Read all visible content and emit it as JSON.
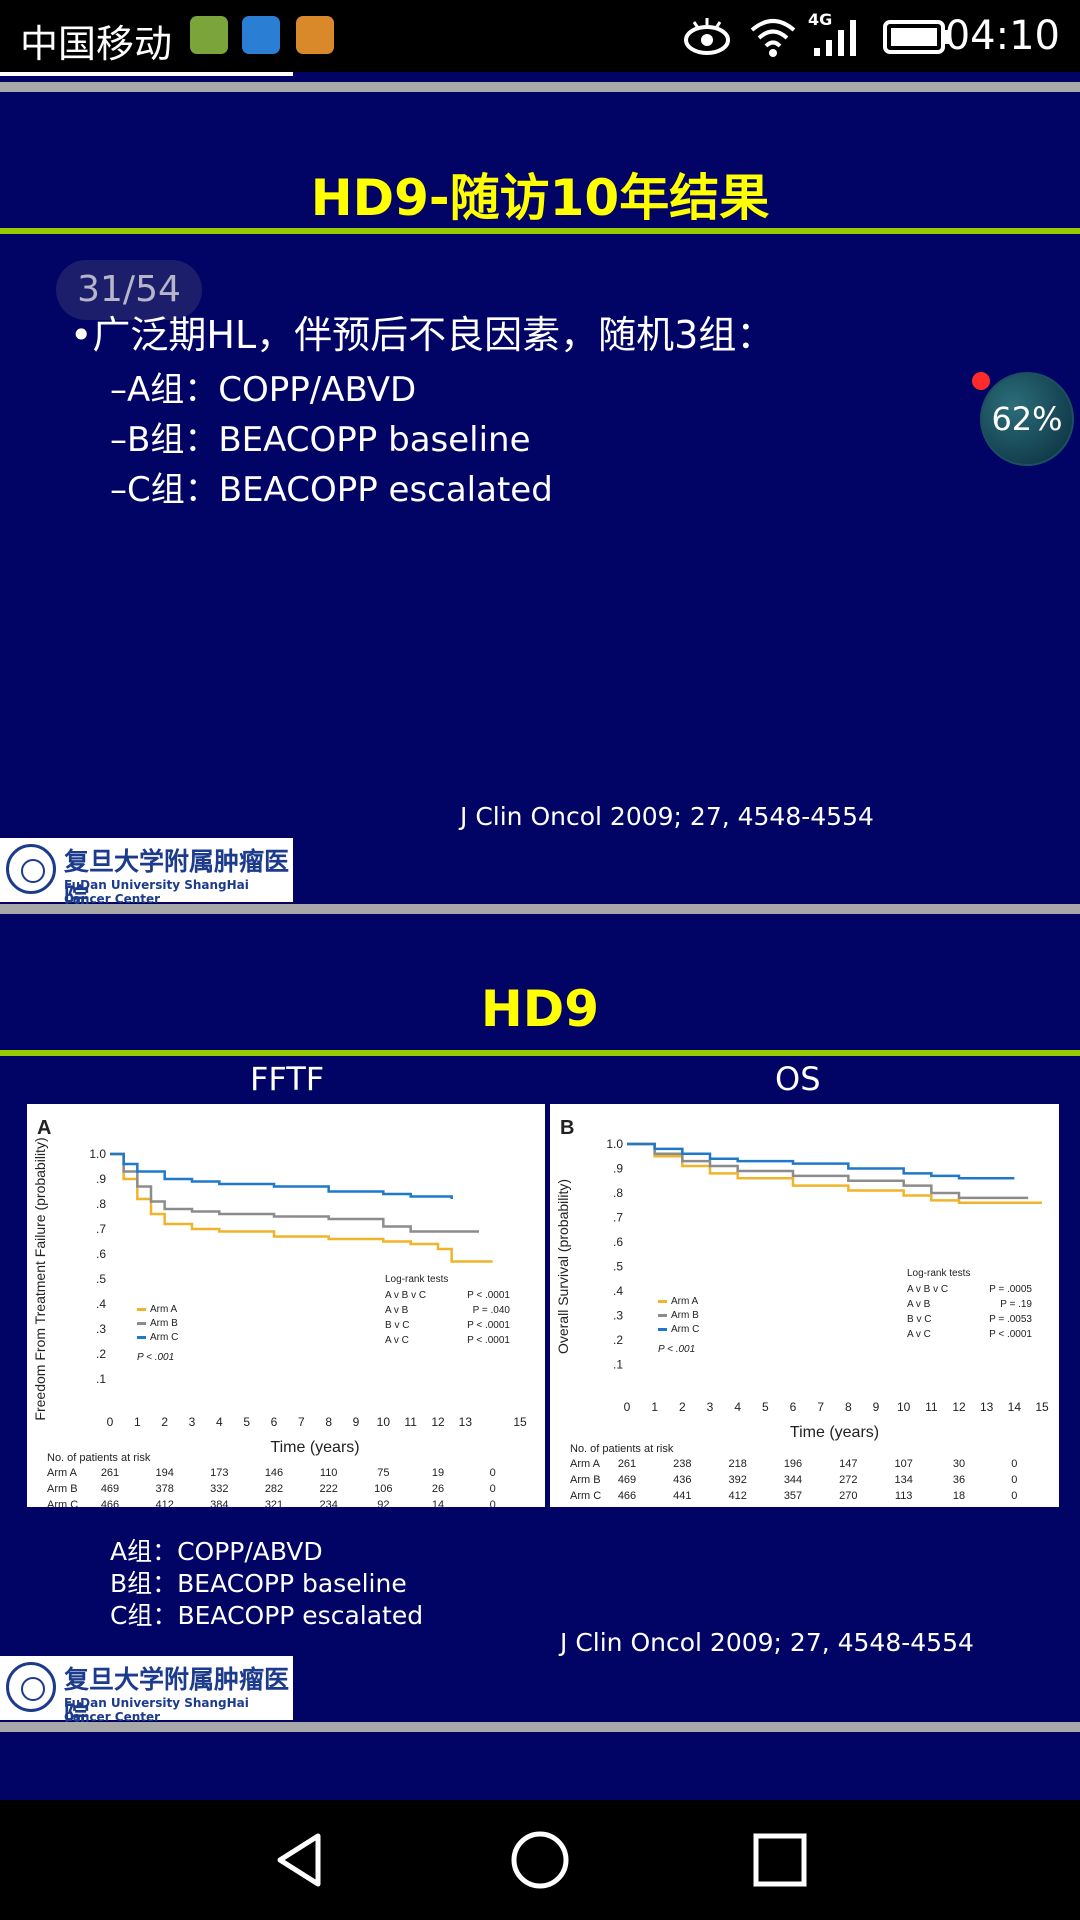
{
  "status": {
    "carrier": "中国移动",
    "network": "4G",
    "time": "04:10",
    "icons": [
      "app-icon-1",
      "app-icon-2",
      "app-icon-3",
      "eye-icon",
      "wifi-icon",
      "signal-icon",
      "battery-icon"
    ]
  },
  "slide1": {
    "title": "HD9-随访10年结果",
    "page_indicator": "31/54",
    "bullet": "•广泛期HL，伴预后不良因素，随机3组：",
    "sub_items": [
      "–A组：COPP/ABVD",
      "–B组：BEACOPP baseline",
      "–C组：BEACOPP escalated"
    ],
    "citation": "J Clin Oncol 2009; 27, 4548-4554",
    "logo_cn": "复旦大学附属肿瘤医院",
    "logo_en": "FuDan University ShangHai Cancer Center"
  },
  "float_ball": {
    "percent": "62%"
  },
  "slide2": {
    "title": "HD9",
    "col_left": "FFTF",
    "col_right": "OS",
    "legend_list": [
      "A组：COPP/ABVD",
      "B组：BEACOPP baseline",
      "C组：BEACOPP escalated"
    ],
    "citation": "J Clin Oncol 2009; 27, 4548-4554",
    "logo_cn": "复旦大学附属肿瘤医院",
    "logo_en": "FuDan University ShangHai Cancer Center"
  },
  "colors": {
    "slide_bg": "#010464",
    "title": "#ffff00",
    "rule": "#99cc00",
    "arm_a": "#f0b428",
    "arm_b": "#8c8c8c",
    "arm_c": "#1f78c8"
  },
  "chart_data": [
    {
      "type": "line",
      "panel": "A",
      "ylabel": "Freedom From Treatment Failure (probability)",
      "xlabel": "Time (years)",
      "xlim": [
        0,
        15
      ],
      "ylim": [
        0,
        1
      ],
      "xticks": [
        "0",
        "1",
        "2",
        "3",
        "4",
        "5",
        "6",
        "7",
        "8",
        "9",
        "10",
        "11",
        "12",
        "13",
        "15"
      ],
      "yticks": [
        ".1",
        ".2",
        ".3",
        ".4",
        ".5",
        ".6",
        ".7",
        ".8",
        ".9",
        "1.0"
      ],
      "series": [
        {
          "name": "Arm A",
          "x": [
            0,
            0.5,
            1,
            1.5,
            2,
            3,
            4,
            6,
            8,
            10,
            11,
            12,
            12.5,
            14
          ],
          "y": [
            1.0,
            0.9,
            0.82,
            0.76,
            0.72,
            0.7,
            0.69,
            0.67,
            0.66,
            0.65,
            0.64,
            0.62,
            0.57,
            0.57
          ]
        },
        {
          "name": "Arm B",
          "x": [
            0,
            0.5,
            1,
            1.5,
            2,
            3,
            4,
            6,
            8,
            10,
            11,
            12,
            13.5
          ],
          "y": [
            1.0,
            0.93,
            0.87,
            0.81,
            0.78,
            0.77,
            0.76,
            0.75,
            0.74,
            0.71,
            0.69,
            0.69,
            0.69
          ]
        },
        {
          "name": "Arm C",
          "x": [
            0,
            0.5,
            1,
            2,
            3,
            4,
            6,
            8,
            10,
            11,
            12.5
          ],
          "y": [
            1.0,
            0.96,
            0.93,
            0.9,
            0.89,
            0.88,
            0.87,
            0.85,
            0.84,
            0.83,
            0.82
          ]
        }
      ],
      "legend_text": [
        "Arm A",
        "Arm B",
        "Arm C"
      ],
      "p_overall": "P < .001",
      "log_rank": {
        "title": "Log-rank tests",
        "rows": [
          [
            "A v B v C",
            "P < .0001"
          ],
          [
            "A v B",
            "P = .040"
          ],
          [
            "B v C",
            "P < .0001"
          ],
          [
            "A v C",
            "P < .0001"
          ]
        ]
      },
      "risk_table": {
        "title": "No. of patients at risk",
        "rows": [
          {
            "label": "Arm A",
            "values": [
              "261",
              "194",
              "173",
              "146",
              "110",
              "75",
              "19",
              "0"
            ]
          },
          {
            "label": "Arm B",
            "values": [
              "469",
              "378",
              "332",
              "282",
              "222",
              "106",
              "26",
              "0"
            ]
          },
          {
            "label": "Arm C",
            "values": [
              "466",
              "412",
              "384",
              "321",
              "234",
              "92",
              "14",
              "0"
            ]
          }
        ]
      }
    },
    {
      "type": "line",
      "panel": "B",
      "ylabel": "Overall Survival (probability)",
      "xlabel": "Time (years)",
      "xlim": [
        0,
        15
      ],
      "ylim": [
        0,
        1
      ],
      "xticks": [
        "0",
        "1",
        "2",
        "3",
        "4",
        "5",
        "6",
        "7",
        "8",
        "9",
        "10",
        "11",
        "12",
        "13",
        "14",
        "15"
      ],
      "yticks": [
        ".1",
        ".2",
        ".3",
        ".4",
        ".5",
        ".6",
        ".7",
        ".8",
        ".9",
        "1.0"
      ],
      "series": [
        {
          "name": "Arm A",
          "x": [
            0,
            1,
            2,
            3,
            4,
            6,
            8,
            10,
            11,
            12,
            15
          ],
          "y": [
            1.0,
            0.95,
            0.91,
            0.88,
            0.86,
            0.83,
            0.81,
            0.79,
            0.77,
            0.76,
            0.76
          ]
        },
        {
          "name": "Arm B",
          "x": [
            0,
            1,
            2,
            3,
            4,
            6,
            8,
            10,
            11,
            12,
            14.5
          ],
          "y": [
            1.0,
            0.96,
            0.93,
            0.91,
            0.89,
            0.87,
            0.85,
            0.83,
            0.8,
            0.78,
            0.78
          ]
        },
        {
          "name": "Arm C",
          "x": [
            0,
            1,
            2,
            3,
            4,
            6,
            8,
            10,
            11,
            12,
            14
          ],
          "y": [
            1.0,
            0.98,
            0.96,
            0.94,
            0.93,
            0.92,
            0.9,
            0.88,
            0.87,
            0.86,
            0.86
          ]
        }
      ],
      "legend_text": [
        "Arm A",
        "Arm B",
        "Arm C"
      ],
      "p_overall": "P < .001",
      "log_rank": {
        "title": "Log-rank tests",
        "rows": [
          [
            "A v B v C",
            "P = .0005"
          ],
          [
            "A v B",
            "P = .19"
          ],
          [
            "B v C",
            "P = .0053"
          ],
          [
            "A v C",
            "P < .0001"
          ]
        ]
      },
      "risk_table": {
        "title": "No. of patients at risk",
        "rows": [
          {
            "label": "Arm A",
            "values": [
              "261",
              "238",
              "218",
              "196",
              "147",
              "107",
              "30",
              "0"
            ]
          },
          {
            "label": "Arm B",
            "values": [
              "469",
              "436",
              "392",
              "344",
              "272",
              "134",
              "36",
              "0"
            ]
          },
          {
            "label": "Arm C",
            "values": [
              "466",
              "441",
              "412",
              "357",
              "270",
              "113",
              "18",
              "0"
            ]
          }
        ]
      }
    }
  ]
}
